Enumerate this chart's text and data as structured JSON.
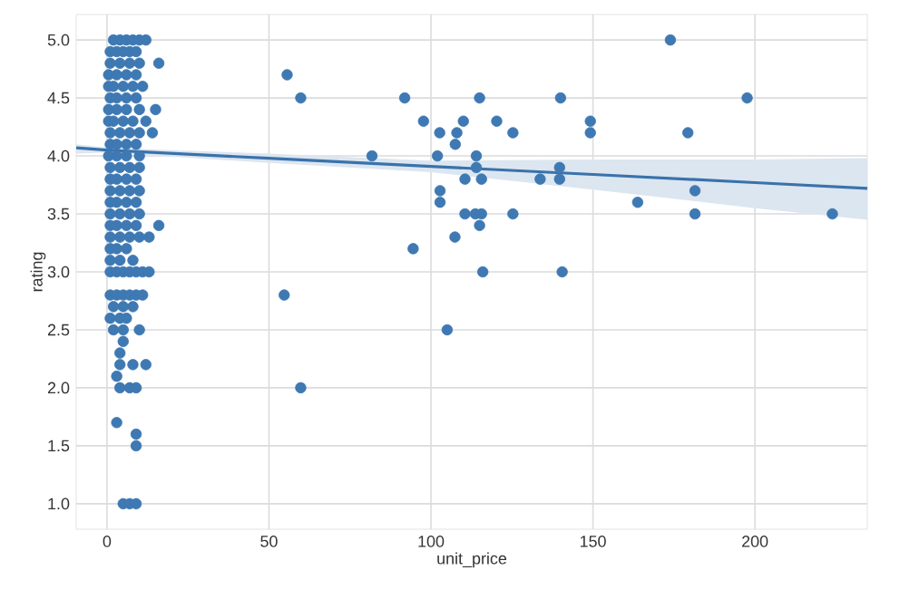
{
  "chart_data": {
    "type": "scatter",
    "xlabel": "unit_price",
    "ylabel": "rating",
    "xlim": [
      -9.5,
      234.7
    ],
    "ylim": [
      0.78,
      5.22
    ],
    "xticks": [
      0,
      50,
      100,
      150,
      200
    ],
    "yticks": [
      {
        "value": 1.0,
        "label": "1.0"
      },
      {
        "value": 1.5,
        "label": "1.5"
      },
      {
        "value": 2.0,
        "label": "2.0"
      },
      {
        "value": 2.5,
        "label": "2.5"
      },
      {
        "value": 3.0,
        "label": "3.0"
      },
      {
        "value": 3.5,
        "label": "3.5"
      },
      {
        "value": 4.0,
        "label": "4.0"
      },
      {
        "value": 4.5,
        "label": "4.5"
      },
      {
        "value": 5.0,
        "label": "5.0"
      }
    ],
    "grid": true,
    "series": [
      {
        "marker": "circle",
        "color": "#3f79b3",
        "x": [
          2,
          4,
          6,
          8,
          10,
          12,
          1,
          3,
          5,
          7,
          9,
          1,
          4,
          7,
          10,
          16,
          0.5,
          3,
          6,
          9,
          0.5,
          2,
          5,
          8,
          11,
          1,
          3,
          6,
          9,
          0.5,
          3,
          6,
          10,
          15,
          0.5,
          2,
          5,
          8,
          12,
          1,
          4,
          7,
          10,
          14,
          1,
          3,
          6,
          9,
          0.5,
          3,
          6,
          10,
          1,
          4,
          7,
          10,
          1,
          3,
          6,
          9,
          1,
          4,
          7,
          10,
          1,
          3,
          6,
          9,
          1,
          4,
          7,
          10,
          1,
          3,
          6,
          9,
          16,
          1,
          4,
          7,
          10,
          13,
          1,
          3,
          6,
          1,
          4,
          8,
          1,
          3,
          5,
          7,
          9,
          11,
          13,
          1,
          3,
          5,
          7,
          9,
          11,
          2,
          5,
          8,
          1,
          4,
          6,
          2,
          5,
          10,
          5,
          4,
          4,
          8,
          12,
          3,
          4,
          7,
          9,
          3,
          9,
          9,
          5,
          7,
          9,
          55.6,
          59.8,
          91.9,
          97.7,
          102.7,
          110,
          108,
          107.5,
          115,
          120.3,
          125.3,
          81.8,
          102,
          114,
          114,
          110.5,
          115.6,
          133.7,
          102.8,
          102.8,
          110.5,
          113.7,
          115.6,
          125.3,
          115,
          107.4,
          94.5,
          116,
          140.5,
          54.7,
          105,
          59.8,
          140,
          173.9,
          197.6,
          149.2,
          149.2,
          179.3,
          139.7,
          139.7,
          163.8,
          181.5,
          181.5,
          223.9
        ],
        "values": [
          5.0,
          5.0,
          5.0,
          5.0,
          5.0,
          5.0,
          4.9,
          4.9,
          4.9,
          4.9,
          4.9,
          4.8,
          4.8,
          4.8,
          4.8,
          4.8,
          4.7,
          4.7,
          4.7,
          4.7,
          4.6,
          4.6,
          4.6,
          4.6,
          4.6,
          4.5,
          4.5,
          4.5,
          4.5,
          4.4,
          4.4,
          4.4,
          4.4,
          4.4,
          4.3,
          4.3,
          4.3,
          4.3,
          4.3,
          4.2,
          4.2,
          4.2,
          4.2,
          4.2,
          4.1,
          4.1,
          4.1,
          4.1,
          4.0,
          4.0,
          4.0,
          4.0,
          3.9,
          3.9,
          3.9,
          3.9,
          3.8,
          3.8,
          3.8,
          3.8,
          3.7,
          3.7,
          3.7,
          3.7,
          3.6,
          3.6,
          3.6,
          3.6,
          3.5,
          3.5,
          3.5,
          3.5,
          3.4,
          3.4,
          3.4,
          3.4,
          3.4,
          3.3,
          3.3,
          3.3,
          3.3,
          3.3,
          3.2,
          3.2,
          3.2,
          3.1,
          3.1,
          3.1,
          3.0,
          3.0,
          3.0,
          3.0,
          3.0,
          3.0,
          3.0,
          2.8,
          2.8,
          2.8,
          2.8,
          2.8,
          2.8,
          2.7,
          2.7,
          2.7,
          2.6,
          2.6,
          2.6,
          2.5,
          2.5,
          2.5,
          2.4,
          2.3,
          2.2,
          2.2,
          2.2,
          2.1,
          2.0,
          2.0,
          2.0,
          1.7,
          1.6,
          1.5,
          1.0,
          1.0,
          1.0,
          4.7,
          4.5,
          4.5,
          4.3,
          4.2,
          4.3,
          4.2,
          4.1,
          4.5,
          4.3,
          4.2,
          4.0,
          4.0,
          4.0,
          3.9,
          3.8,
          3.8,
          3.8,
          3.7,
          3.6,
          3.5,
          3.5,
          3.5,
          3.5,
          3.4,
          3.3,
          3.2,
          3.0,
          3.0,
          2.8,
          2.5,
          2.0,
          4.5,
          5.0,
          4.5,
          4.3,
          4.2,
          4.2,
          3.9,
          3.8,
          3.6,
          3.7,
          3.5,
          3.5
        ]
      },
      {
        "type": "line",
        "marker": "none",
        "color": "#3a72ab",
        "x": [
          -9.5,
          0,
          50,
          100,
          150,
          200,
          234.7
        ],
        "values": [
          4.07,
          4.05,
          3.98,
          3.91,
          3.84,
          3.77,
          3.72
        ],
        "lower": [
          4.02,
          4.03,
          3.94,
          3.86,
          3.71,
          3.55,
          3.45
        ],
        "upper": [
          4.1,
          4.07,
          4.02,
          3.96,
          3.97,
          3.97,
          3.98
        ]
      }
    ]
  }
}
